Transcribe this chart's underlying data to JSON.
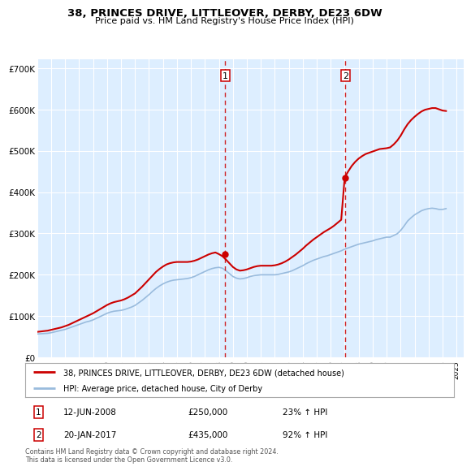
{
  "title": "38, PRINCES DRIVE, LITTLEOVER, DERBY, DE23 6DW",
  "subtitle": "Price paid vs. HM Land Registry's House Price Index (HPI)",
  "legend_line1": "38, PRINCES DRIVE, LITTLEOVER, DERBY, DE23 6DW (detached house)",
  "legend_line2": "HPI: Average price, detached house, City of Derby",
  "transaction1_date": "12-JUN-2008",
  "transaction1_price": "£250,000",
  "transaction1_hpi": "23% ↑ HPI",
  "transaction1_x": 2008.45,
  "transaction1_y": 250000,
  "transaction2_date": "20-JAN-2017",
  "transaction2_price": "£435,000",
  "transaction2_hpi": "92% ↑ HPI",
  "transaction2_x": 2017.05,
  "transaction2_y": 435000,
  "vline1_x": 2008.45,
  "vline2_x": 2017.05,
  "ylim": [
    0,
    720000
  ],
  "xlim": [
    1995,
    2025.5
  ],
  "yticks": [
    0,
    100000,
    200000,
    300000,
    400000,
    500000,
    600000,
    700000
  ],
  "ytick_labels": [
    "£0",
    "£100K",
    "£200K",
    "£300K",
    "£400K",
    "£500K",
    "£600K",
    "£700K"
  ],
  "xticks": [
    1995,
    1996,
    1997,
    1998,
    1999,
    2000,
    2001,
    2002,
    2003,
    2004,
    2005,
    2006,
    2007,
    2008,
    2009,
    2010,
    2011,
    2012,
    2013,
    2014,
    2015,
    2016,
    2017,
    2018,
    2019,
    2020,
    2021,
    2022,
    2023,
    2024,
    2025
  ],
  "property_color": "#cc0000",
  "hpi_color": "#99bbdd",
  "plot_bg": "#ddeeff",
  "footnote": "Contains HM Land Registry data © Crown copyright and database right 2024.\nThis data is licensed under the Open Government Licence v3.0.",
  "hpi_data_x": [
    1995,
    1995.25,
    1995.5,
    1995.75,
    1996,
    1996.25,
    1996.5,
    1996.75,
    1997,
    1997.25,
    1997.5,
    1997.75,
    1998,
    1998.25,
    1998.5,
    1998.75,
    1999,
    1999.25,
    1999.5,
    1999.75,
    2000,
    2000.25,
    2000.5,
    2000.75,
    2001,
    2001.25,
    2001.5,
    2001.75,
    2002,
    2002.25,
    2002.5,
    2002.75,
    2003,
    2003.25,
    2003.5,
    2003.75,
    2004,
    2004.25,
    2004.5,
    2004.75,
    2005,
    2005.25,
    2005.5,
    2005.75,
    2006,
    2006.25,
    2006.5,
    2006.75,
    2007,
    2007.25,
    2007.5,
    2007.75,
    2008,
    2008.25,
    2008.5,
    2008.75,
    2009,
    2009.25,
    2009.5,
    2009.75,
    2010,
    2010.25,
    2010.5,
    2010.75,
    2011,
    2011.25,
    2011.5,
    2011.75,
    2012,
    2012.25,
    2012.5,
    2012.75,
    2013,
    2013.25,
    2013.5,
    2013.75,
    2014,
    2014.25,
    2014.5,
    2014.75,
    2015,
    2015.25,
    2015.5,
    2015.75,
    2016,
    2016.25,
    2016.5,
    2016.75,
    2017,
    2017.25,
    2017.5,
    2017.75,
    2018,
    2018.25,
    2018.5,
    2018.75,
    2019,
    2019.25,
    2019.5,
    2019.75,
    2020,
    2020.25,
    2020.5,
    2020.75,
    2021,
    2021.25,
    2021.5,
    2021.75,
    2022,
    2022.25,
    2022.5,
    2022.75,
    2023,
    2023.25,
    2023.5,
    2023.75,
    2024,
    2024.25
  ],
  "hpi_data_y": [
    57000,
    57500,
    58000,
    58500,
    60000,
    62000,
    64000,
    66000,
    68000,
    71000,
    74000,
    77000,
    80000,
    83000,
    86000,
    88000,
    91000,
    95000,
    99000,
    103000,
    107000,
    110000,
    112000,
    113000,
    114000,
    116000,
    119000,
    122000,
    126000,
    132000,
    138000,
    145000,
    152000,
    160000,
    167000,
    173000,
    178000,
    182000,
    185000,
    187000,
    188000,
    189000,
    190000,
    191000,
    193000,
    196000,
    200000,
    204000,
    208000,
    212000,
    215000,
    217000,
    218000,
    216000,
    210000,
    203000,
    196000,
    192000,
    190000,
    191000,
    193000,
    196000,
    198000,
    199000,
    200000,
    200000,
    200000,
    200000,
    200000,
    201000,
    203000,
    205000,
    207000,
    210000,
    214000,
    218000,
    222000,
    227000,
    231000,
    235000,
    238000,
    241000,
    244000,
    246000,
    249000,
    252000,
    255000,
    258000,
    262000,
    265000,
    268000,
    271000,
    274000,
    276000,
    278000,
    280000,
    282000,
    285000,
    287000,
    289000,
    291000,
    291000,
    295000,
    299000,
    307000,
    318000,
    330000,
    338000,
    345000,
    350000,
    355000,
    358000,
    360000,
    361000,
    360000,
    358000,
    358000,
    360000
  ],
  "property_data_x": [
    1995,
    1995.25,
    1995.5,
    1995.75,
    1996,
    1996.25,
    1996.5,
    1996.75,
    1997,
    1997.25,
    1997.5,
    1997.75,
    1998,
    1998.25,
    1998.5,
    1998.75,
    1999,
    1999.25,
    1999.5,
    1999.75,
    2000,
    2000.25,
    2000.5,
    2000.75,
    2001,
    2001.25,
    2001.5,
    2001.75,
    2002,
    2002.25,
    2002.5,
    2002.75,
    2003,
    2003.25,
    2003.5,
    2003.75,
    2004,
    2004.25,
    2004.5,
    2004.75,
    2005,
    2005.25,
    2005.5,
    2005.75,
    2006,
    2006.25,
    2006.5,
    2006.75,
    2007,
    2007.25,
    2007.5,
    2007.75,
    2008,
    2008.25,
    2008.5,
    2008.75,
    2009,
    2009.25,
    2009.5,
    2009.75,
    2010,
    2010.25,
    2010.5,
    2010.75,
    2011,
    2011.25,
    2011.5,
    2011.75,
    2012,
    2012.25,
    2012.5,
    2012.75,
    2013,
    2013.25,
    2013.5,
    2013.75,
    2014,
    2014.25,
    2014.5,
    2014.75,
    2015,
    2015.25,
    2015.5,
    2015.75,
    2016,
    2016.25,
    2016.5,
    2016.75,
    2017,
    2017.25,
    2017.5,
    2017.75,
    2018,
    2018.25,
    2018.5,
    2018.75,
    2019,
    2019.25,
    2019.5,
    2019.75,
    2020,
    2020.25,
    2020.5,
    2020.75,
    2021,
    2021.25,
    2021.5,
    2021.75,
    2022,
    2022.25,
    2022.5,
    2022.75,
    2023,
    2023.25,
    2023.5,
    2023.75,
    2024,
    2024.25
  ],
  "property_data_y": [
    62000,
    63000,
    64000,
    65000,
    67000,
    69000,
    71000,
    73000,
    76000,
    79000,
    83000,
    87000,
    91000,
    95000,
    99000,
    103000,
    107000,
    112000,
    117000,
    122000,
    127000,
    131000,
    134000,
    136000,
    138000,
    141000,
    145000,
    150000,
    155000,
    163000,
    171000,
    180000,
    189000,
    198000,
    207000,
    214000,
    220000,
    225000,
    228000,
    230000,
    231000,
    231000,
    231000,
    231000,
    232000,
    234000,
    237000,
    241000,
    245000,
    249000,
    252000,
    254000,
    250000,
    245000,
    237000,
    228000,
    219000,
    213000,
    210000,
    211000,
    213000,
    216000,
    219000,
    221000,
    222000,
    222000,
    222000,
    222000,
    223000,
    225000,
    228000,
    232000,
    237000,
    243000,
    249000,
    256000,
    263000,
    271000,
    278000,
    285000,
    291000,
    297000,
    303000,
    308000,
    313000,
    319000,
    326000,
    333000,
    435000,
    450000,
    463000,
    473000,
    481000,
    487000,
    492000,
    495000,
    498000,
    501000,
    504000,
    505000,
    506000,
    508000,
    515000,
    524000,
    536000,
    551000,
    564000,
    574000,
    582000,
    589000,
    595000,
    599000,
    601000,
    603000,
    603000,
    600000,
    597000,
    596000
  ]
}
